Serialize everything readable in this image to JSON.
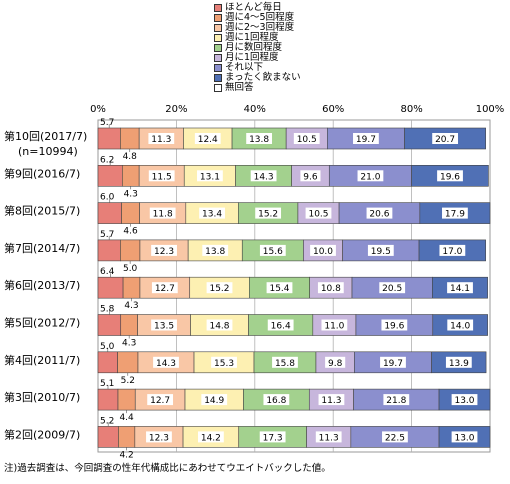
{
  "chart_data": {
    "type": "bar",
    "orientation": "horizontal",
    "stacked": "percent",
    "title": "",
    "xlabel": "",
    "ylabel": "",
    "xlim": [
      0,
      100
    ],
    "x_ticks": [
      "0%",
      "20%",
      "40%",
      "60%",
      "80%",
      "100%"
    ],
    "grid": true,
    "legend_position": "top-right",
    "categories": [
      [
        "第10回(2017/7)",
        "(n=10994)"
      ],
      [
        "第9回(2016/7)"
      ],
      [
        "第8回(2015/7)"
      ],
      [
        "第7回(2014/7)"
      ],
      [
        "第6回(2013/7)"
      ],
      [
        "第5回(2012/7)"
      ],
      [
        "第4回(2011/7)"
      ],
      [
        "第3回(2010/7)"
      ],
      [
        "第2回(2009/7)"
      ]
    ],
    "series": [
      {
        "name": "ほとんど毎日",
        "color": "#e77f78",
        "values": [
          5.7,
          6.2,
          6.0,
          5.7,
          6.4,
          5.8,
          5.0,
          5.1,
          5.2
        ]
      },
      {
        "name": "週に4〜5回程度",
        "color": "#ef9f73",
        "values": [
          4.8,
          4.3,
          4.6,
          5.0,
          4.3,
          4.3,
          5.2,
          4.4,
          4.2
        ]
      },
      {
        "name": "週に2〜3回程度",
        "color": "#f9c7a6",
        "values": [
          11.3,
          11.5,
          11.8,
          12.3,
          12.7,
          13.5,
          14.3,
          12.7,
          12.3
        ]
      },
      {
        "name": "週に1回程度",
        "color": "#fdf0b2",
        "values": [
          12.4,
          13.1,
          13.4,
          13.8,
          15.2,
          14.8,
          15.3,
          14.9,
          14.2
        ]
      },
      {
        "name": "月に数回程度",
        "color": "#a3d18e",
        "values": [
          13.8,
          14.3,
          15.2,
          15.6,
          15.4,
          16.4,
          15.8,
          16.8,
          17.3
        ]
      },
      {
        "name": "月に1回程度",
        "color": "#c7b6dc",
        "values": [
          10.5,
          9.6,
          10.5,
          10.0,
          10.8,
          11.0,
          9.8,
          11.3,
          11.3
        ]
      },
      {
        "name": "それ以下",
        "color": "#8b8fce",
        "values": [
          19.7,
          21.0,
          20.6,
          19.5,
          20.5,
          19.6,
          19.7,
          21.8,
          22.5
        ]
      },
      {
        "name": "まったく飲まない",
        "color": "#5070b5",
        "values": [
          20.7,
          19.6,
          17.9,
          17.0,
          14.1,
          14.0,
          13.9,
          13.0,
          13.0
        ]
      },
      {
        "name": "無回答",
        "color": "#ffffff",
        "values": [
          0.0,
          0.0,
          0.0,
          0.0,
          0.0,
          0.0,
          0.0,
          0.0,
          0.0
        ]
      }
    ],
    "value_labels": [
      [
        "5.7",
        "4.8",
        "11.3",
        "12.4",
        "13.8",
        "10.5",
        "19.7",
        "20.7"
      ],
      [
        "6.2",
        "4.3",
        "11.5",
        "13.1",
        "14.3",
        "9.6",
        "21.0",
        "19.6"
      ],
      [
        "6.0",
        "4.6",
        "11.8",
        "13.4",
        "15.2",
        "10.5",
        "20.6",
        "17.9"
      ],
      [
        "5.7",
        "5.0",
        "12.3",
        "13.8",
        "15.6",
        "10.0",
        "19.5",
        "17.0"
      ],
      [
        "6.4",
        "4.3",
        "12.7",
        "15.2",
        "15.4",
        "10.8",
        "20.5",
        "14.1"
      ],
      [
        "5.8",
        "4.3",
        "13.5",
        "14.8",
        "16.4",
        "11.0",
        "19.6",
        "14.0"
      ],
      [
        "5.0",
        "5.2",
        "14.3",
        "15.3",
        "15.8",
        "9.8",
        "19.7",
        "13.9"
      ],
      [
        "5.1",
        "4.4",
        "12.7",
        "14.9",
        "16.8",
        "11.3",
        "21.8",
        "13.0"
      ],
      [
        "5.2",
        "4.2",
        "12.3",
        "14.2",
        "17.3",
        "11.3",
        "22.5",
        "13.0"
      ]
    ]
  },
  "footnote": "注)過去調査は、今回調査の性年代構成比にあわせてウエイトバックした値。"
}
